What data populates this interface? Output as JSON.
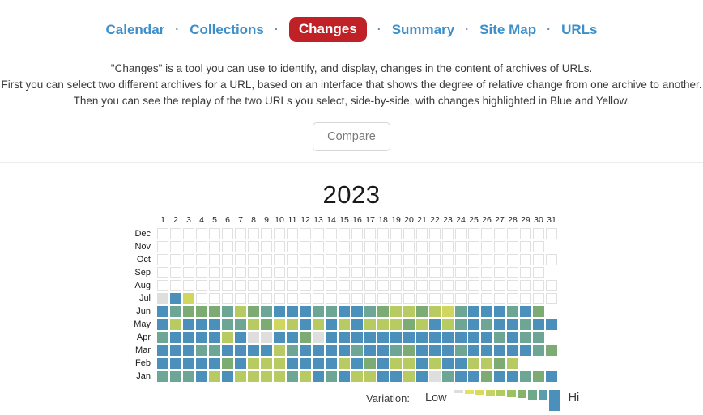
{
  "nav": {
    "separator": "·",
    "items": [
      {
        "id": "calendar",
        "label": "Calendar",
        "active": false
      },
      {
        "id": "collections",
        "label": "Collections",
        "active": false
      },
      {
        "id": "changes",
        "label": "Changes",
        "active": true
      },
      {
        "id": "summary",
        "label": "Summary",
        "active": false
      },
      {
        "id": "site-map",
        "label": "Site Map",
        "active": false
      },
      {
        "id": "urls",
        "label": "URLs",
        "active": false
      }
    ],
    "active_bg": "#bf2126",
    "link_color": "#3d8fca"
  },
  "description": {
    "lines": [
      "\"Changes\" is a tool you can use to identify, and display, changes in the content of archives of URLs.",
      "First you can select two different archives for a URL, based on an interface that shows the degree of relative change from one archive to another.",
      "Then you can see the replay of the two URLs you select, side-by-side, with changes highlighted in Blue and Yellow."
    ]
  },
  "compare_button_label": "Compare",
  "chart_data": {
    "type": "heatmap",
    "title": "2023",
    "x_tick_labels": [
      "1",
      "2",
      "3",
      "4",
      "5",
      "6",
      "7",
      "8",
      "9",
      "10",
      "11",
      "12",
      "13",
      "14",
      "15",
      "16",
      "17",
      "18",
      "19",
      "20",
      "21",
      "22",
      "23",
      "24",
      "25",
      "26",
      "27",
      "28",
      "29",
      "30",
      "31"
    ],
    "y_tick_labels": [
      "Dec",
      "Nov",
      "Oct",
      "Sep",
      "Aug",
      "Jul",
      "Jun",
      "May",
      "Apr",
      "Mar",
      "Feb",
      "Jan"
    ],
    "legend_position": "bottom-right",
    "color_key": {
      "B": "#4a90ba",
      "T": "#6ea695",
      "G": "#7dab74",
      "Y": "#b8cb62",
      "L": "#cfd75f",
      "E": "#dedede",
      ".": "empty"
    },
    "months": [
      {
        "label": "Dec",
        "days": 31,
        "cells": "..............................."
      },
      {
        "label": "Nov",
        "days": 30,
        "cells": ".............................."
      },
      {
        "label": "Oct",
        "days": 31,
        "cells": "..............................."
      },
      {
        "label": "Sep",
        "days": 30,
        "cells": ".............................."
      },
      {
        "label": "Aug",
        "days": 31,
        "cells": "..............................."
      },
      {
        "label": "Jul",
        "days": 31,
        "cells": "EBL............................"
      },
      {
        "label": "Jun",
        "days": 30,
        "cells": "BTGGGTYGTBBBTTBBTGYYGYLTBBBTBG"
      },
      {
        "label": "May",
        "days": 31,
        "cells": "BYBBBTTYGLYBYBYBYYYGYBYTBTBBTBB"
      },
      {
        "label": "Apr",
        "days": 30,
        "cells": "TBBBBYBEEBBGEBBBBBBBBBBBBBTBTT"
      },
      {
        "label": "Mar",
        "days": 31,
        "cells": "BBBTTBBBBYTBBBBTBBTGBBBTBBBBBTG"
      },
      {
        "label": "Feb",
        "days": 28,
        "cells": "BBBBBGBYYYBBBBYBGBYYBYBBYYGY"
      },
      {
        "label": "Jan",
        "days": 31,
        "cells": "TTTBYBYYYYTYBTBYYBBYBETBBGBBTGB"
      }
    ]
  },
  "legend": {
    "label": "Variation:",
    "low": "Low",
    "hi": "Hi",
    "bars": [
      {
        "color": "#dedede",
        "height": 4,
        "width": 11
      },
      {
        "color": "#e6e15c",
        "height": 5,
        "width": 11
      },
      {
        "color": "#d9d95a",
        "height": 6,
        "width": 11
      },
      {
        "color": "#c6d360",
        "height": 7,
        "width": 11
      },
      {
        "color": "#b1ca62",
        "height": 8,
        "width": 11
      },
      {
        "color": "#9cc165",
        "height": 9,
        "width": 11
      },
      {
        "color": "#85b36b",
        "height": 10,
        "width": 11
      },
      {
        "color": "#6fa98c",
        "height": 12,
        "width": 11
      },
      {
        "color": "#5b9dac",
        "height": 12,
        "width": 11
      },
      {
        "color": "#4a90ba",
        "height": 26,
        "width": 13
      }
    ]
  }
}
